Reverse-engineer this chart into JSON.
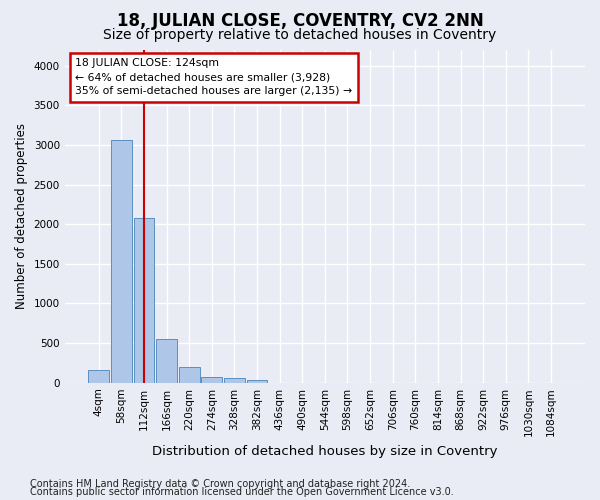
{
  "title": "18, JULIAN CLOSE, COVENTRY, CV2 2NN",
  "subtitle": "Size of property relative to detached houses in Coventry",
  "xlabel": "Distribution of detached houses by size in Coventry",
  "ylabel": "Number of detached properties",
  "footnote1": "Contains HM Land Registry data © Crown copyright and database right 2024.",
  "footnote2": "Contains public sector information licensed under the Open Government Licence v3.0.",
  "bin_labels": [
    "4sqm",
    "58sqm",
    "112sqm",
    "166sqm",
    "220sqm",
    "274sqm",
    "328sqm",
    "382sqm",
    "436sqm",
    "490sqm",
    "544sqm",
    "598sqm",
    "652sqm",
    "706sqm",
    "760sqm",
    "814sqm",
    "868sqm",
    "922sqm",
    "976sqm",
    "1030sqm",
    "1084sqm"
  ],
  "bar_values": [
    155,
    3060,
    2080,
    550,
    195,
    75,
    55,
    40,
    0,
    0,
    0,
    0,
    0,
    0,
    0,
    0,
    0,
    0,
    0,
    0,
    0
  ],
  "bar_color": "#aec6e8",
  "bar_edge_color": "#5a8fc0",
  "property_line_color": "#cc0000",
  "annotation_text": "18 JULIAN CLOSE: 124sqm\n← 64% of detached houses are smaller (3,928)\n35% of semi-detached houses are larger (2,135) →",
  "annotation_box_color": "#ffffff",
  "annotation_box_edge": "#cc0000",
  "ylim": [
    0,
    4200
  ],
  "yticks": [
    0,
    500,
    1000,
    1500,
    2000,
    2500,
    3000,
    3500,
    4000
  ],
  "background_color": "#eaecf5",
  "axes_background": "#eaecf5",
  "grid_color": "#ffffff",
  "title_fontsize": 12,
  "subtitle_fontsize": 10,
  "xlabel_fontsize": 9.5,
  "ylabel_fontsize": 8.5,
  "tick_fontsize": 7.5,
  "footnote_fontsize": 7
}
